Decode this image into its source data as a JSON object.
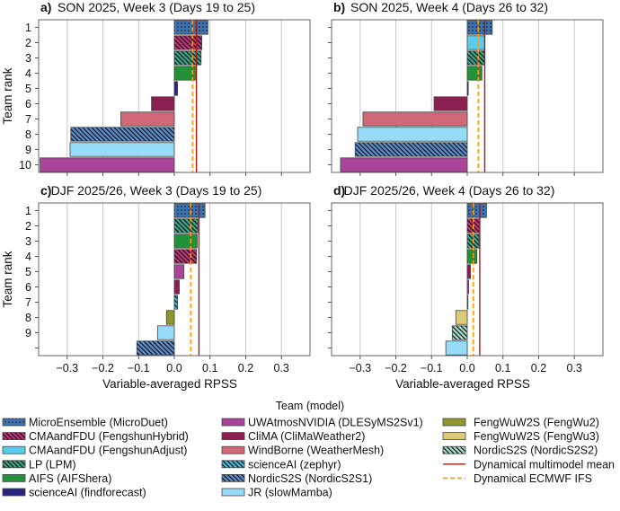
{
  "chart_data": [
    {
      "type": "bar",
      "panel_label": "a)",
      "title": "SON 2025, Week 3 (Days 19 to 25)",
      "ylabel": "Team rank",
      "xlabel": "",
      "xlim": [
        -0.38,
        0.38
      ],
      "grid": true,
      "rank_labels": [
        "1",
        "2",
        "3",
        "4",
        "5",
        "6",
        "7",
        "8",
        "9",
        "10"
      ],
      "bars": [
        {
          "team": "MicroEnsemble (MicroDuet)",
          "value": 0.094
        },
        {
          "team": "CMAandFDU (FengshunHybrid)",
          "value": 0.077
        },
        {
          "team": "LP (LPM)",
          "value": 0.075
        },
        {
          "team": "AIFS (AIFShera)",
          "value": 0.061
        },
        {
          "team": "scienceAI (findforecast)",
          "value": 0.009
        },
        {
          "team": "CliMA (CliMaWeather2)",
          "value": -0.064
        },
        {
          "team": "WindBorne (WeatherMesh)",
          "value": -0.15
        },
        {
          "team": "NordicS2S (NordicS2S1)",
          "value": -0.29
        },
        {
          "team": "JR (slowMamba)",
          "value": -0.292
        },
        {
          "team": "UWAtmosNVIDIA (DLESyMS2Sv1)",
          "value": -0.376
        }
      ],
      "multimodel_mean": 0.062,
      "ecmwf_ifs": 0.051
    },
    {
      "type": "bar",
      "panel_label": "b)",
      "title": "SON 2025, Week 4 (Days 26 to 32)",
      "ylabel": "",
      "xlabel": "",
      "xlim": [
        -0.38,
        0.38
      ],
      "grid": true,
      "rank_labels": [],
      "bars": [
        {
          "team": "MicroEnsemble (MicroDuet)",
          "value": 0.07
        },
        {
          "team": "CMAandFDU (FengshunAdjust)",
          "value": 0.049
        },
        {
          "team": "LP (LPM)",
          "value": 0.049
        },
        {
          "team": "AIFS (AIFShera)",
          "value": 0.041
        },
        {
          "team": "scienceAI (findforecast)",
          "value": 0.003
        },
        {
          "team": "CliMA (CliMaWeather2)",
          "value": -0.093
        },
        {
          "team": "WindBorne (WeatherMesh)",
          "value": -0.292
        },
        {
          "team": "JR (slowMamba)",
          "value": -0.307
        },
        {
          "team": "NordicS2S (NordicS2S1)",
          "value": -0.314
        },
        {
          "team": "UWAtmosNVIDIA (DLESyMS2Sv1)",
          "value": -0.355
        }
      ],
      "multimodel_mean": 0.049,
      "ecmwf_ifs": 0.031
    },
    {
      "type": "bar",
      "panel_label": "c)",
      "title": "DJF 2025/26, Week 3 (Days 19 to 25)",
      "ylabel": "Team rank",
      "xlabel": "Variable-averaged RPSS",
      "xlim": [
        -0.38,
        0.38
      ],
      "grid": true,
      "rank_labels": [
        "1",
        "2",
        "3",
        "4",
        "5",
        "6",
        "7",
        "8",
        "9",
        ""
      ],
      "x_ticks": [
        "−0.3",
        "−0.2",
        "−0.1",
        "0.0",
        "0.1",
        "0.2",
        "0.3"
      ],
      "bars": [
        {
          "team": "MicroEnsemble (MicroDuet)",
          "value": 0.086
        },
        {
          "team": "LP (LPM)",
          "value": 0.066
        },
        {
          "team": "AIFS (AIFShera)",
          "value": 0.064
        },
        {
          "team": "CMAandFDU (FengshunHybrid)",
          "value": 0.062
        },
        {
          "team": "UWAtmosNVIDIA (DLESyMS2Sv1)",
          "value": 0.027
        },
        {
          "team": "CliMA (CliMaWeather2)",
          "value": 0.014
        },
        {
          "team": "scienceAI (zephyr)",
          "value": 0.009
        },
        {
          "team": "FengWuW2S (FengWu2)",
          "value": -0.022
        },
        {
          "team": "JR (slowMamba)",
          "value": -0.047
        },
        {
          "team": "NordicS2S (NordicS2S1)",
          "value": -0.105
        }
      ],
      "multimodel_mean": 0.069,
      "ecmwf_ifs": 0.046
    },
    {
      "type": "bar",
      "panel_label": "d)",
      "title": "DJF 2025/26, Week 4 (Days 26 to 32)",
      "ylabel": "",
      "xlabel": "Variable-averaged RPSS",
      "xlim": [
        -0.38,
        0.38
      ],
      "grid": true,
      "rank_labels": [],
      "x_ticks": [
        "−0.3",
        "−0.2",
        "−0.1",
        "0.0",
        "0.1",
        "0.2",
        "0.3"
      ],
      "bars": [
        {
          "team": "MicroEnsemble (MicroDuet)",
          "value": 0.054
        },
        {
          "team": "CMAandFDU (FengshunHybrid)",
          "value": 0.035
        },
        {
          "team": "LP (LPM)",
          "value": 0.033
        },
        {
          "team": "AIFS (AIFShera)",
          "value": 0.027
        },
        {
          "team": "CliMA (CliMaWeather2)",
          "value": 0.009
        },
        {
          "team": "UWAtmosNVIDIA (DLESyMS2Sv1)",
          "value": 0.004
        },
        {
          "team": "scienceAI (zephyr)",
          "value": 0.002
        },
        {
          "team": "FengWuW2S (FengWu3)",
          "value": -0.032
        },
        {
          "team": "NordicS2S (NordicS2S2)",
          "value": -0.042
        },
        {
          "team": "JR (slowMamba)",
          "value": -0.06
        }
      ],
      "multimodel_mean": 0.035,
      "ecmwf_ifs": 0.017
    }
  ],
  "legend": {
    "title": "Team (model)",
    "placement": "bottom",
    "entries": [
      {
        "label": "MicroEnsemble (MicroDuet)",
        "color": "#3e73b0",
        "pattern": "dots"
      },
      {
        "label": "CMAandFDU (FengshunHybrid)",
        "color": "#c2347c",
        "pattern": "hatch"
      },
      {
        "label": "CMAandFDU (FengshunAdjust)",
        "color": "#5ccbeb",
        "pattern": "none"
      },
      {
        "label": "LP (LPM)",
        "color": "#3aa68a",
        "pattern": "hatch"
      },
      {
        "label": "AIFS (AIFShera)",
        "color": "#23913a",
        "pattern": "none"
      },
      {
        "label": "scienceAI (findforecast)",
        "color": "#2a2280",
        "pattern": "none"
      },
      {
        "label": "UWAtmosNVIDIA (DLESyMS2Sv1)",
        "color": "#a84499",
        "pattern": "none"
      },
      {
        "label": "CliMA (CliMaWeather2)",
        "color": "#8a1f50",
        "pattern": "none"
      },
      {
        "label": "WindBorne (WeatherMesh)",
        "color": "#d06878",
        "pattern": "none"
      },
      {
        "label": "scienceAI (zephyr)",
        "color": "#4ab8d8",
        "pattern": "hatch"
      },
      {
        "label": "NordicS2S (NordicS2S1)",
        "color": "#5a8fd0",
        "pattern": "hatch"
      },
      {
        "label": "JR (slowMamba)",
        "color": "#96dcf8",
        "pattern": "none"
      },
      {
        "label": "FengWuW2S (FengWu2)",
        "color": "#8f9630",
        "pattern": "none"
      },
      {
        "label": "FengWuW2S (FengWu3)",
        "color": "#dccb78",
        "pattern": "none"
      },
      {
        "label": "NordicS2S (NordicS2S2)",
        "color": "#a0dcc8",
        "pattern": "hatch"
      },
      {
        "label": "Dynamical multimodel mean",
        "color": "#a01818",
        "pattern": "line"
      },
      {
        "label": "Dynamical ECMWF IFS",
        "color": "#ff9a10",
        "pattern": "dashed"
      }
    ]
  }
}
